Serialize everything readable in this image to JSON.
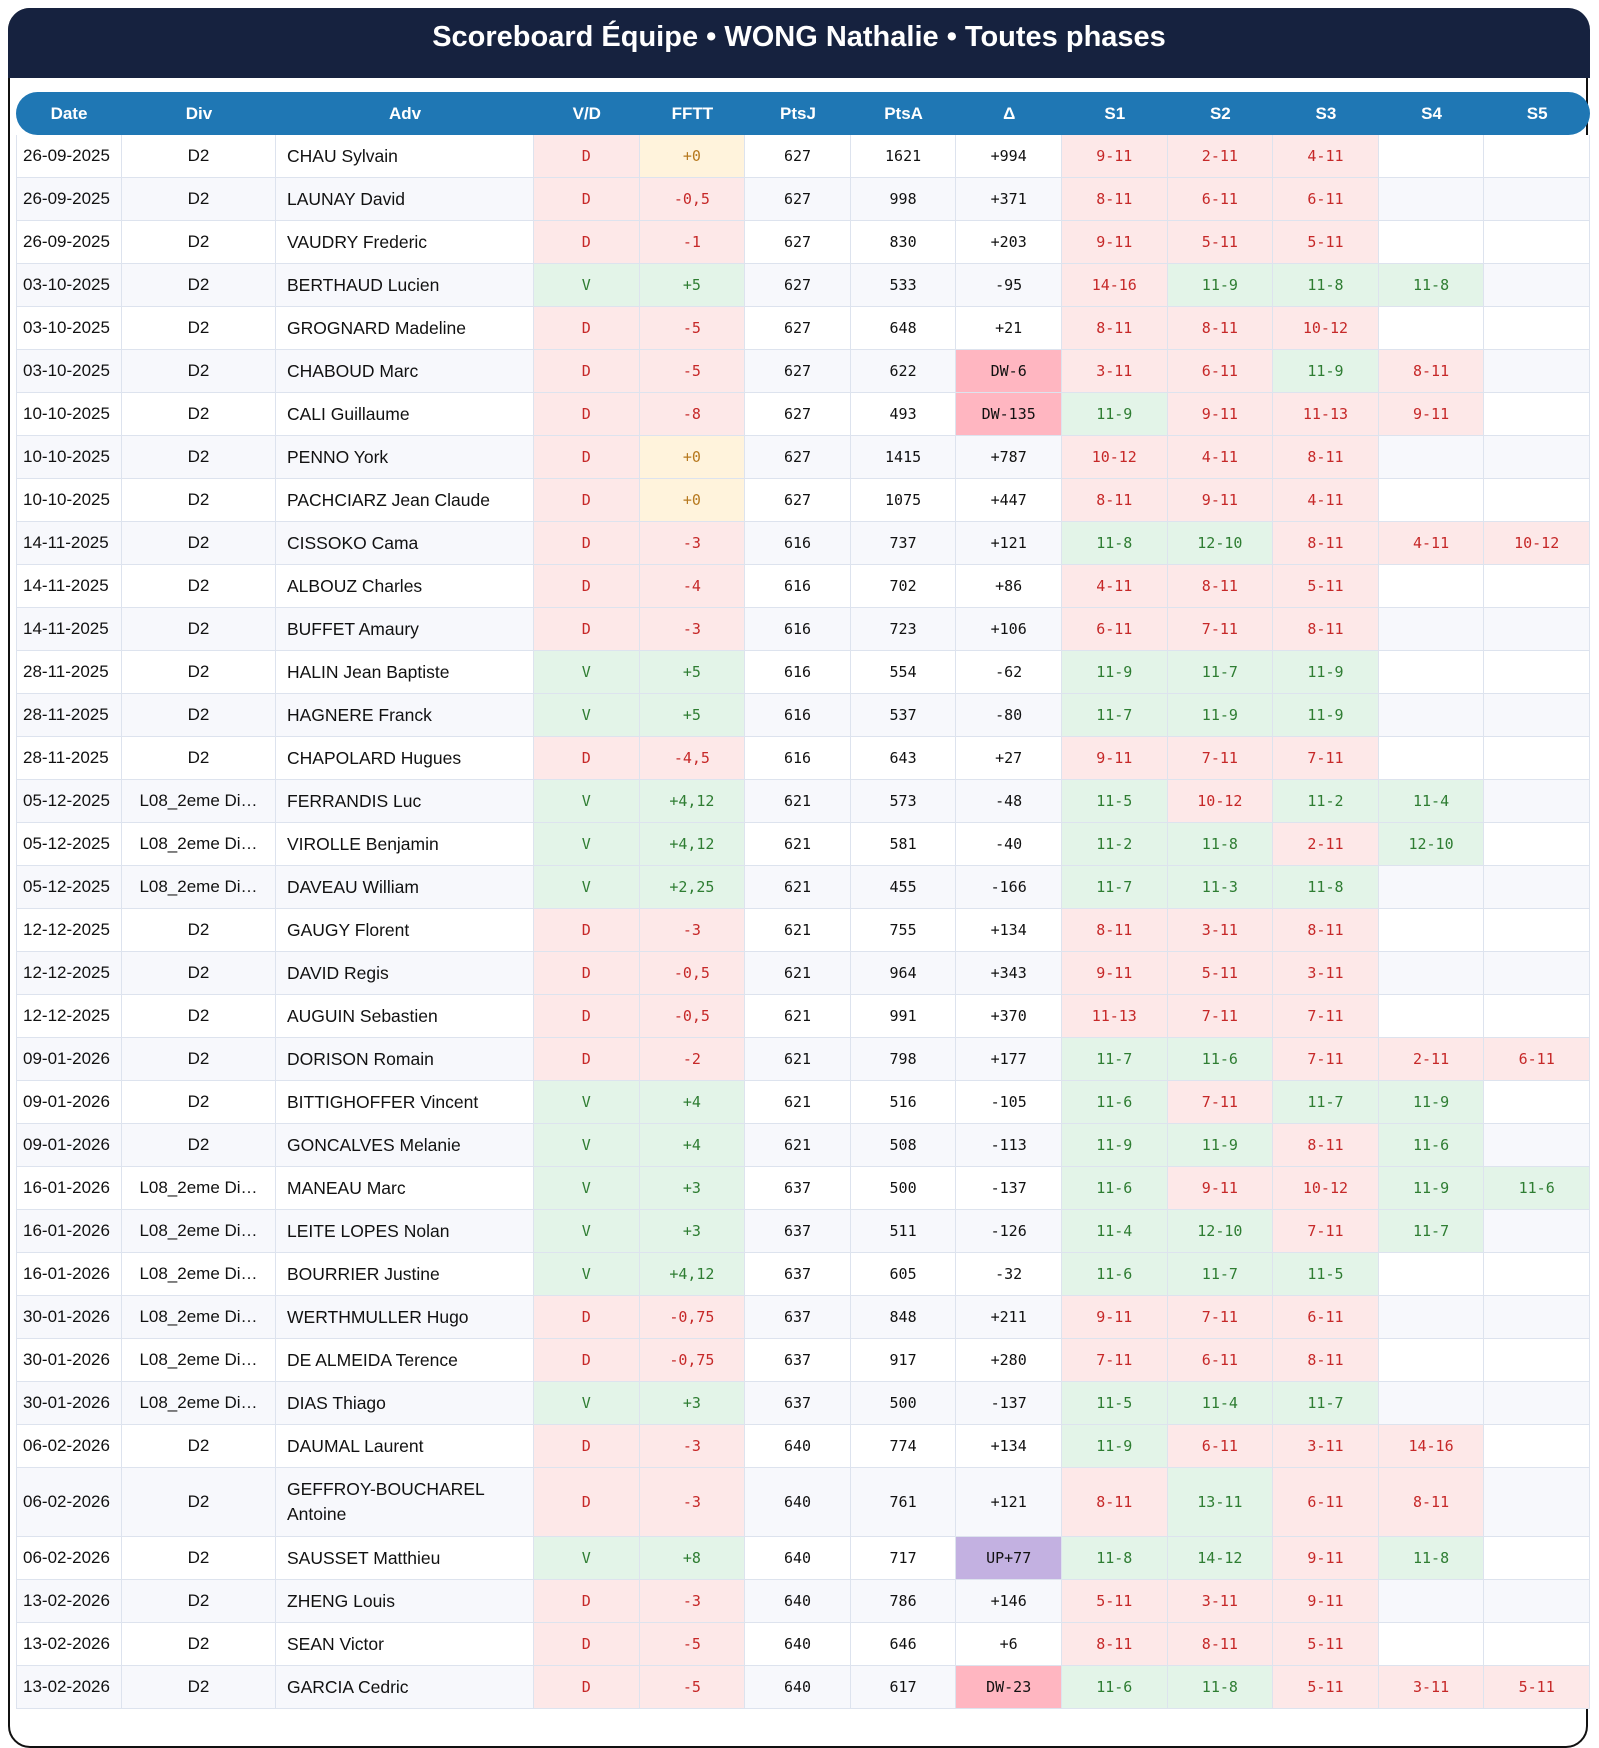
{
  "title": "Scoreboard Équipe • WONG Nathalie • Toutes phases",
  "columns": [
    "Date",
    "Div",
    "Adv",
    "V/D",
    "FFTT",
    "PtsJ",
    "PtsA",
    "Δ",
    "S1",
    "S2",
    "S3",
    "S4",
    "S5"
  ],
  "colors": {
    "title_bg": "#16223f",
    "header_bg": "#1f77b4",
    "win_bg": "#e3f4e8",
    "win_text": "#2e7d32",
    "loss_bg": "#fde8e8",
    "loss_text": "#c62828",
    "zero_bg": "#fff3dc",
    "zero_text": "#b7791f",
    "dw_bg": "#ffb6c1",
    "up_bg": "#c3b1e1"
  },
  "rows": [
    {
      "date": "26-09-2025",
      "div": "D2",
      "adv": "CHAU Sylvain",
      "vd": "D",
      "fftt": "+0",
      "ptsj": "627",
      "ptsa": "1621",
      "delta": "+994",
      "sets": [
        "9-11",
        "2-11",
        "4-11",
        "",
        ""
      ]
    },
    {
      "date": "26-09-2025",
      "div": "D2",
      "adv": "LAUNAY David",
      "vd": "D",
      "fftt": "-0,5",
      "ptsj": "627",
      "ptsa": "998",
      "delta": "+371",
      "sets": [
        "8-11",
        "6-11",
        "6-11",
        "",
        ""
      ]
    },
    {
      "date": "26-09-2025",
      "div": "D2",
      "adv": "VAUDRY Frederic",
      "vd": "D",
      "fftt": "-1",
      "ptsj": "627",
      "ptsa": "830",
      "delta": "+203",
      "sets": [
        "9-11",
        "5-11",
        "5-11",
        "",
        ""
      ]
    },
    {
      "date": "03-10-2025",
      "div": "D2",
      "adv": "BERTHAUD Lucien",
      "vd": "V",
      "fftt": "+5",
      "ptsj": "627",
      "ptsa": "533",
      "delta": "-95",
      "sets": [
        "14-16",
        "11-9",
        "11-8",
        "11-8",
        ""
      ]
    },
    {
      "date": "03-10-2025",
      "div": "D2",
      "adv": "GROGNARD Madeline",
      "vd": "D",
      "fftt": "-5",
      "ptsj": "627",
      "ptsa": "648",
      "delta": "+21",
      "sets": [
        "8-11",
        "8-11",
        "10-12",
        "",
        ""
      ]
    },
    {
      "date": "03-10-2025",
      "div": "D2",
      "adv": "CHABOUD Marc",
      "vd": "D",
      "fftt": "-5",
      "ptsj": "627",
      "ptsa": "622",
      "delta": "DW-6",
      "sets": [
        "3-11",
        "6-11",
        "11-9",
        "8-11",
        ""
      ]
    },
    {
      "date": "10-10-2025",
      "div": "D2",
      "adv": "CALI Guillaume",
      "vd": "D",
      "fftt": "-8",
      "ptsj": "627",
      "ptsa": "493",
      "delta": "DW-135",
      "sets": [
        "11-9",
        "9-11",
        "11-13",
        "9-11",
        ""
      ]
    },
    {
      "date": "10-10-2025",
      "div": "D2",
      "adv": "PENNO York",
      "vd": "D",
      "fftt": "+0",
      "ptsj": "627",
      "ptsa": "1415",
      "delta": "+787",
      "sets": [
        "10-12",
        "4-11",
        "8-11",
        "",
        ""
      ]
    },
    {
      "date": "10-10-2025",
      "div": "D2",
      "adv": "PACHCIARZ Jean Claude",
      "vd": "D",
      "fftt": "+0",
      "ptsj": "627",
      "ptsa": "1075",
      "delta": "+447",
      "sets": [
        "8-11",
        "9-11",
        "4-11",
        "",
        ""
      ]
    },
    {
      "date": "14-11-2025",
      "div": "D2",
      "adv": "CISSOKO Cama",
      "vd": "D",
      "fftt": "-3",
      "ptsj": "616",
      "ptsa": "737",
      "delta": "+121",
      "sets": [
        "11-8",
        "12-10",
        "8-11",
        "4-11",
        "10-12"
      ]
    },
    {
      "date": "14-11-2025",
      "div": "D2",
      "adv": "ALBOUZ Charles",
      "vd": "D",
      "fftt": "-4",
      "ptsj": "616",
      "ptsa": "702",
      "delta": "+86",
      "sets": [
        "4-11",
        "8-11",
        "5-11",
        "",
        ""
      ]
    },
    {
      "date": "14-11-2025",
      "div": "D2",
      "adv": "BUFFET Amaury",
      "vd": "D",
      "fftt": "-3",
      "ptsj": "616",
      "ptsa": "723",
      "delta": "+106",
      "sets": [
        "6-11",
        "7-11",
        "8-11",
        "",
        ""
      ]
    },
    {
      "date": "28-11-2025",
      "div": "D2",
      "adv": "HALIN Jean Baptiste",
      "vd": "V",
      "fftt": "+5",
      "ptsj": "616",
      "ptsa": "554",
      "delta": "-62",
      "sets": [
        "11-9",
        "11-7",
        "11-9",
        "",
        ""
      ]
    },
    {
      "date": "28-11-2025",
      "div": "D2",
      "adv": "HAGNERE Franck",
      "vd": "V",
      "fftt": "+5",
      "ptsj": "616",
      "ptsa": "537",
      "delta": "-80",
      "sets": [
        "11-7",
        "11-9",
        "11-9",
        "",
        ""
      ]
    },
    {
      "date": "28-11-2025",
      "div": "D2",
      "adv": "CHAPOLARD Hugues",
      "vd": "D",
      "fftt": "-4,5",
      "ptsj": "616",
      "ptsa": "643",
      "delta": "+27",
      "sets": [
        "9-11",
        "7-11",
        "7-11",
        "",
        ""
      ]
    },
    {
      "date": "05-12-2025",
      "div": "L08_2eme Di…",
      "adv": "FERRANDIS Luc",
      "vd": "V",
      "fftt": "+4,12",
      "ptsj": "621",
      "ptsa": "573",
      "delta": "-48",
      "sets": [
        "11-5",
        "10-12",
        "11-2",
        "11-4",
        ""
      ]
    },
    {
      "date": "05-12-2025",
      "div": "L08_2eme Di…",
      "adv": "VIROLLE Benjamin",
      "vd": "V",
      "fftt": "+4,12",
      "ptsj": "621",
      "ptsa": "581",
      "delta": "-40",
      "sets": [
        "11-2",
        "11-8",
        "2-11",
        "12-10",
        ""
      ]
    },
    {
      "date": "05-12-2025",
      "div": "L08_2eme Di…",
      "adv": "DAVEAU William",
      "vd": "V",
      "fftt": "+2,25",
      "ptsj": "621",
      "ptsa": "455",
      "delta": "-166",
      "sets": [
        "11-7",
        "11-3",
        "11-8",
        "",
        ""
      ]
    },
    {
      "date": "12-12-2025",
      "div": "D2",
      "adv": "GAUGY Florent",
      "vd": "D",
      "fftt": "-3",
      "ptsj": "621",
      "ptsa": "755",
      "delta": "+134",
      "sets": [
        "8-11",
        "3-11",
        "8-11",
        "",
        ""
      ]
    },
    {
      "date": "12-12-2025",
      "div": "D2",
      "adv": "DAVID Regis",
      "vd": "D",
      "fftt": "-0,5",
      "ptsj": "621",
      "ptsa": "964",
      "delta": "+343",
      "sets": [
        "9-11",
        "5-11",
        "3-11",
        "",
        ""
      ]
    },
    {
      "date": "12-12-2025",
      "div": "D2",
      "adv": "AUGUIN Sebastien",
      "vd": "D",
      "fftt": "-0,5",
      "ptsj": "621",
      "ptsa": "991",
      "delta": "+370",
      "sets": [
        "11-13",
        "7-11",
        "7-11",
        "",
        ""
      ]
    },
    {
      "date": "09-01-2026",
      "div": "D2",
      "adv": "DORISON Romain",
      "vd": "D",
      "fftt": "-2",
      "ptsj": "621",
      "ptsa": "798",
      "delta": "+177",
      "sets": [
        "11-7",
        "11-6",
        "7-11",
        "2-11",
        "6-11"
      ]
    },
    {
      "date": "09-01-2026",
      "div": "D2",
      "adv": "BITTIGHOFFER Vincent",
      "vd": "V",
      "fftt": "+4",
      "ptsj": "621",
      "ptsa": "516",
      "delta": "-105",
      "sets": [
        "11-6",
        "7-11",
        "11-7",
        "11-9",
        ""
      ]
    },
    {
      "date": "09-01-2026",
      "div": "D2",
      "adv": "GONCALVES Melanie",
      "vd": "V",
      "fftt": "+4",
      "ptsj": "621",
      "ptsa": "508",
      "delta": "-113",
      "sets": [
        "11-9",
        "11-9",
        "8-11",
        "11-6",
        ""
      ]
    },
    {
      "date": "16-01-2026",
      "div": "L08_2eme Di…",
      "adv": "MANEAU Marc",
      "vd": "V",
      "fftt": "+3",
      "ptsj": "637",
      "ptsa": "500",
      "delta": "-137",
      "sets": [
        "11-6",
        "9-11",
        "10-12",
        "11-9",
        "11-6"
      ]
    },
    {
      "date": "16-01-2026",
      "div": "L08_2eme Di…",
      "adv": "LEITE LOPES Nolan",
      "vd": "V",
      "fftt": "+3",
      "ptsj": "637",
      "ptsa": "511",
      "delta": "-126",
      "sets": [
        "11-4",
        "12-10",
        "7-11",
        "11-7",
        ""
      ]
    },
    {
      "date": "16-01-2026",
      "div": "L08_2eme Di…",
      "adv": "BOURRIER Justine",
      "vd": "V",
      "fftt": "+4,12",
      "ptsj": "637",
      "ptsa": "605",
      "delta": "-32",
      "sets": [
        "11-6",
        "11-7",
        "11-5",
        "",
        ""
      ]
    },
    {
      "date": "30-01-2026",
      "div": "L08_2eme Di…",
      "adv": "WERTHMULLER Hugo",
      "vd": "D",
      "fftt": "-0,75",
      "ptsj": "637",
      "ptsa": "848",
      "delta": "+211",
      "sets": [
        "9-11",
        "7-11",
        "6-11",
        "",
        ""
      ]
    },
    {
      "date": "30-01-2026",
      "div": "L08_2eme Di…",
      "adv": "DE ALMEIDA Terence",
      "vd": "D",
      "fftt": "-0,75",
      "ptsj": "637",
      "ptsa": "917",
      "delta": "+280",
      "sets": [
        "7-11",
        "6-11",
        "8-11",
        "",
        ""
      ]
    },
    {
      "date": "30-01-2026",
      "div": "L08_2eme Di…",
      "adv": "DIAS Thiago",
      "vd": "V",
      "fftt": "+3",
      "ptsj": "637",
      "ptsa": "500",
      "delta": "-137",
      "sets": [
        "11-5",
        "11-4",
        "11-7",
        "",
        ""
      ]
    },
    {
      "date": "06-02-2026",
      "div": "D2",
      "adv": "DAUMAL Laurent",
      "vd": "D",
      "fftt": "-3",
      "ptsj": "640",
      "ptsa": "774",
      "delta": "+134",
      "sets": [
        "11-9",
        "6-11",
        "3-11",
        "14-16",
        ""
      ]
    },
    {
      "date": "06-02-2026",
      "div": "D2",
      "adv": "GEFFROY-BOUCHAREL Antoine",
      "vd": "D",
      "fftt": "-3",
      "ptsj": "640",
      "ptsa": "761",
      "delta": "+121",
      "sets": [
        "8-11",
        "13-11",
        "6-11",
        "8-11",
        ""
      ],
      "tall": true
    },
    {
      "date": "06-02-2026",
      "div": "D2",
      "adv": "SAUSSET Matthieu",
      "vd": "V",
      "fftt": "+8",
      "ptsj": "640",
      "ptsa": "717",
      "delta": "UP+77",
      "sets": [
        "11-8",
        "14-12",
        "9-11",
        "11-8",
        ""
      ]
    },
    {
      "date": "13-02-2026",
      "div": "D2",
      "adv": "ZHENG Louis",
      "vd": "D",
      "fftt": "-3",
      "ptsj": "640",
      "ptsa": "786",
      "delta": "+146",
      "sets": [
        "5-11",
        "3-11",
        "9-11",
        "",
        ""
      ]
    },
    {
      "date": "13-02-2026",
      "div": "D2",
      "adv": "SEAN Victor",
      "vd": "D",
      "fftt": "-5",
      "ptsj": "640",
      "ptsa": "646",
      "delta": "+6",
      "sets": [
        "8-11",
        "8-11",
        "5-11",
        "",
        ""
      ]
    },
    {
      "date": "13-02-2026",
      "div": "D2",
      "adv": "GARCIA Cedric",
      "vd": "D",
      "fftt": "-5",
      "ptsj": "640",
      "ptsa": "617",
      "delta": "DW-23",
      "sets": [
        "11-6",
        "11-8",
        "5-11",
        "3-11",
        "5-11"
      ]
    }
  ]
}
